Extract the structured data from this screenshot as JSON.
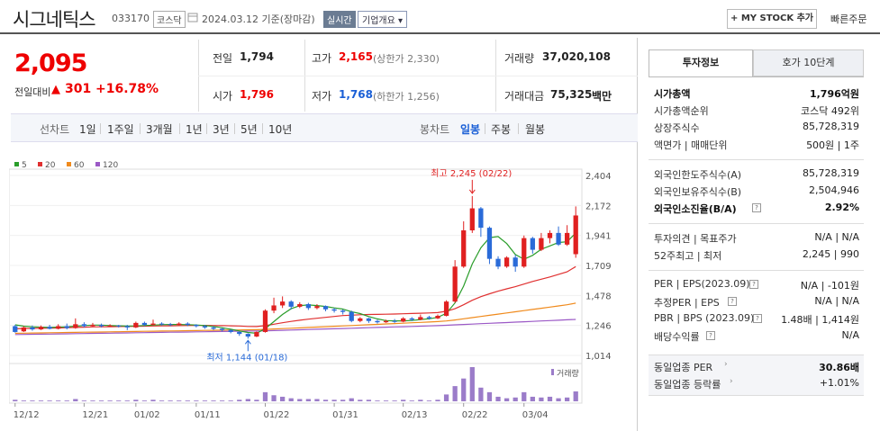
{
  "header": {
    "name": "시그네틱스",
    "code": "033170",
    "market": "코스닥",
    "date_text": "2024.03.12 기준(장마감)",
    "realtime": "실시간",
    "company_btn": "기업개요",
    "mystock_btn": "+ MY STOCK 추가",
    "quick_order": "빠른주문"
  },
  "price": {
    "current": "2,095",
    "change_label": "전일대비",
    "change_arrow": "▲",
    "change": "301",
    "change_pct": "+16.78%"
  },
  "summary": {
    "prev_label": "전일",
    "prev": "1,794",
    "high_label": "고가",
    "high": "2,165",
    "high_limit": "(상한가 2,330)",
    "volume_label": "거래량",
    "volume": "37,020,108",
    "open_label": "시가",
    "open": "1,796",
    "low_label": "저가",
    "low": "1,768",
    "low_limit": "(하한가 1,256)",
    "amount_label": "거래대금",
    "amount": "75,325",
    "amount_unit": "백만"
  },
  "period_bar": {
    "chart_label": "선차트",
    "periods": [
      "1일",
      "1주일",
      "3개월",
      "1년",
      "3년",
      "5년",
      "10년"
    ],
    "candle_label": "봉차트",
    "candles": [
      "일봉",
      "주봉",
      "월봉"
    ],
    "active_candle": "일봉"
  },
  "chart_data": {
    "type": "candlestick",
    "legend": [
      {
        "name": "5",
        "color": "#2a9d2a"
      },
      {
        "name": "20",
        "color": "#e03030"
      },
      {
        "name": "60",
        "color": "#f08a1c"
      },
      {
        "name": "120",
        "color": "#9b59c6"
      }
    ],
    "y_ticks": [
      "2,404",
      "2,172",
      "1,941",
      "1,709",
      "1,478",
      "1,246",
      "1,014"
    ],
    "ylim": [
      1014,
      2404
    ],
    "x_ticks": [
      "12/12",
      "12/21",
      "01/02",
      "01/11",
      "01/22",
      "01/31",
      "02/13",
      "02/22",
      "03/04"
    ],
    "annotation_high": "최고 2,245 (02/22)",
    "annotation_low": "최저 1,144 (01/18)",
    "volume_label": "거래량",
    "candles": [
      [
        1240,
        1195,
        1250,
        1190
      ],
      [
        1200,
        1230,
        1240,
        1195
      ],
      [
        1230,
        1215,
        1245,
        1205
      ],
      [
        1215,
        1235,
        1245,
        1210
      ],
      [
        1235,
        1220,
        1250,
        1215
      ],
      [
        1220,
        1240,
        1255,
        1215
      ],
      [
        1240,
        1225,
        1260,
        1215
      ],
      [
        1225,
        1255,
        1300,
        1220
      ],
      [
        1255,
        1240,
        1270,
        1230
      ],
      [
        1240,
        1250,
        1265,
        1235
      ],
      [
        1250,
        1240,
        1260,
        1230
      ],
      [
        1240,
        1245,
        1255,
        1235
      ],
      [
        1245,
        1240,
        1250,
        1230
      ],
      [
        1240,
        1230,
        1250,
        1210
      ],
      [
        1230,
        1265,
        1275,
        1225
      ],
      [
        1265,
        1250,
        1275,
        1240
      ],
      [
        1250,
        1260,
        1290,
        1245
      ],
      [
        1260,
        1255,
        1270,
        1245
      ],
      [
        1255,
        1250,
        1265,
        1240
      ],
      [
        1250,
        1260,
        1270,
        1245
      ],
      [
        1260,
        1250,
        1270,
        1240
      ],
      [
        1250,
        1240,
        1255,
        1230
      ],
      [
        1240,
        1230,
        1250,
        1220
      ],
      [
        1230,
        1220,
        1240,
        1210
      ],
      [
        1220,
        1210,
        1225,
        1200
      ],
      [
        1210,
        1195,
        1215,
        1185
      ],
      [
        1195,
        1180,
        1200,
        1165
      ],
      [
        1180,
        1160,
        1185,
        1144
      ],
      [
        1160,
        1195,
        1200,
        1155
      ],
      [
        1195,
        1360,
        1370,
        1190
      ],
      [
        1360,
        1400,
        1460,
        1340
      ],
      [
        1400,
        1430,
        1470,
        1380
      ],
      [
        1430,
        1390,
        1440,
        1370
      ],
      [
        1390,
        1410,
        1425,
        1380
      ],
      [
        1410,
        1380,
        1420,
        1365
      ],
      [
        1380,
        1395,
        1410,
        1370
      ],
      [
        1395,
        1370,
        1400,
        1355
      ],
      [
        1370,
        1360,
        1380,
        1345
      ],
      [
        1360,
        1350,
        1370,
        1330
      ],
      [
        1350,
        1280,
        1360,
        1270
      ],
      [
        1280,
        1300,
        1310,
        1270
      ],
      [
        1300,
        1280,
        1305,
        1265
      ],
      [
        1280,
        1270,
        1290,
        1260
      ],
      [
        1270,
        1280,
        1290,
        1265
      ],
      [
        1280,
        1275,
        1295,
        1265
      ],
      [
        1275,
        1300,
        1310,
        1270
      ],
      [
        1300,
        1290,
        1310,
        1280
      ],
      [
        1290,
        1310,
        1330,
        1285
      ],
      [
        1310,
        1300,
        1320,
        1290
      ],
      [
        1300,
        1320,
        1330,
        1295
      ],
      [
        1320,
        1430,
        1440,
        1315
      ],
      [
        1430,
        1700,
        1750,
        1420
      ],
      [
        1700,
        1980,
        2050,
        1690
      ],
      [
        1980,
        2150,
        2245,
        1960
      ],
      [
        2150,
        2000,
        2160,
        1930
      ],
      [
        2000,
        1760,
        2010,
        1720
      ],
      [
        1760,
        1700,
        1780,
        1680
      ],
      [
        1700,
        1770,
        1780,
        1690
      ],
      [
        1770,
        1700,
        1790,
        1660
      ],
      [
        1700,
        1920,
        1940,
        1690
      ],
      [
        1920,
        1830,
        1930,
        1800
      ],
      [
        1830,
        1920,
        1960,
        1820
      ],
      [
        1920,
        1960,
        1980,
        1880
      ],
      [
        1960,
        1870,
        2010,
        1860
      ],
      [
        1870,
        1960,
        2020,
        1860
      ],
      [
        1796,
        2095,
        2165,
        1768
      ]
    ],
    "ma5": [
      1250,
      1240,
      1235,
      1232,
      1230,
      1232,
      1235,
      1240,
      1245,
      1248,
      1248,
      1245,
      1243,
      1241,
      1242,
      1245,
      1248,
      1252,
      1253,
      1253,
      1252,
      1249,
      1245,
      1238,
      1228,
      1216,
      1203,
      1191,
      1185,
      1221,
      1275,
      1330,
      1375,
      1398,
      1404,
      1399,
      1392,
      1381,
      1372,
      1352,
      1337,
      1314,
      1296,
      1283,
      1281,
      1281,
      1284,
      1291,
      1297,
      1308,
      1339,
      1420,
      1549,
      1720,
      1846,
      1924,
      1932,
      1878,
      1793,
      1757,
      1787,
      1834,
      1860,
      1886,
      1892,
      1960
    ],
    "ma20": [
      1220,
      1222,
      1223,
      1224,
      1225,
      1226,
      1228,
      1230,
      1232,
      1234,
      1235,
      1236,
      1237,
      1238,
      1239,
      1240,
      1241,
      1242,
      1243,
      1244,
      1245,
      1246,
      1246,
      1245,
      1244,
      1243,
      1241,
      1238,
      1237,
      1244,
      1255,
      1266,
      1277,
      1286,
      1294,
      1301,
      1308,
      1315,
      1322,
      1325,
      1328,
      1330,
      1331,
      1332,
      1334,
      1336,
      1338,
      1340,
      1342,
      1345,
      1355,
      1375,
      1405,
      1440,
      1468,
      1490,
      1510,
      1528,
      1545,
      1565,
      1585,
      1603,
      1620,
      1640,
      1660,
      1700
    ],
    "ma60": [
      1185,
      1186,
      1187,
      1188,
      1189,
      1190,
      1191,
      1192,
      1193,
      1194,
      1195,
      1196,
      1197,
      1198,
      1199,
      1200,
      1201,
      1202,
      1203,
      1204,
      1205,
      1206,
      1207,
      1208,
      1209,
      1210,
      1211,
      1212,
      1213,
      1215,
      1218,
      1221,
      1224,
      1227,
      1230,
      1233,
      1236,
      1239,
      1242,
      1245,
      1248,
      1251,
      1254,
      1257,
      1260,
      1263,
      1266,
      1269,
      1272,
      1275,
      1280,
      1288,
      1297,
      1306,
      1315,
      1324,
      1333,
      1342,
      1351,
      1360,
      1369,
      1378,
      1387,
      1396,
      1405,
      1418
    ],
    "ma120": [
      1175,
      1176,
      1177,
      1178,
      1179,
      1180,
      1181,
      1182,
      1183,
      1184,
      1185,
      1186,
      1187,
      1188,
      1189,
      1190,
      1191,
      1192,
      1193,
      1194,
      1195,
      1196,
      1197,
      1198,
      1199,
      1200,
      1201,
      1202,
      1203,
      1204,
      1206,
      1208,
      1210,
      1212,
      1214,
      1216,
      1218,
      1220,
      1222,
      1224,
      1226,
      1228,
      1230,
      1232,
      1234,
      1236,
      1238,
      1240,
      1242,
      1244,
      1247,
      1250,
      1253,
      1256,
      1259,
      1262,
      1265,
      1268,
      1271,
      1274,
      1277,
      1280,
      1283,
      1286,
      1289,
      1292
    ],
    "volume": [
      2,
      1,
      1,
      1,
      1,
      1,
      1,
      3,
      1,
      1,
      1,
      1,
      1,
      1,
      2,
      1,
      2,
      1,
      1,
      1,
      1,
      1,
      1,
      1,
      1,
      1,
      2,
      3,
      2,
      12,
      8,
      6,
      4,
      3,
      3,
      3,
      2,
      2,
      2,
      4,
      2,
      2,
      1,
      1,
      1,
      2,
      1,
      2,
      1,
      2,
      9,
      20,
      30,
      45,
      18,
      12,
      6,
      4,
      5,
      12,
      6,
      5,
      6,
      4,
      5,
      13
    ]
  },
  "right_panel": {
    "tab_invest": "투자정보",
    "tab_hoga": "호가 10단계",
    "rows_a": [
      {
        "k": "시가총액",
        "v": "1,796억원",
        "bold": true
      },
      {
        "k": "시가총액순위",
        "v": "코스닥 492위"
      },
      {
        "k": "상장주식수",
        "v": "85,728,319"
      },
      {
        "k": "액면가 | 매매단위",
        "v": "500원 | 1주"
      }
    ],
    "rows_b": [
      {
        "k": "외국인한도주식수(A)",
        "v": "85,728,319"
      },
      {
        "k": "외국인보유주식수(B)",
        "v": "2,504,946"
      },
      {
        "k": "외국인소진율(B/A)",
        "v": "2.92%",
        "bold": true
      }
    ],
    "rows_c": [
      {
        "k": "투자의견 | 목표주가",
        "v": "N/A | N/A"
      },
      {
        "k": "52주최고 | 최저",
        "v": "2,245 | 990"
      }
    ],
    "per_label": "PER | EPS(2023.09)",
    "per_val": "N/A | -101원",
    "eper_label": "추정PER | EPS",
    "eper_val": "N/A | N/A",
    "pbr_label": "PBR | BPS (2023.09)",
    "pbr_val": "1.48배 | 1,414원",
    "div_label": "배당수익률",
    "div_val": "N/A",
    "peer_per_label": "동일업종 PER",
    "peer_per_val": "30.86배",
    "peer_rate_label": "동일업종 등락률",
    "peer_rate_val": "+1.01%"
  }
}
